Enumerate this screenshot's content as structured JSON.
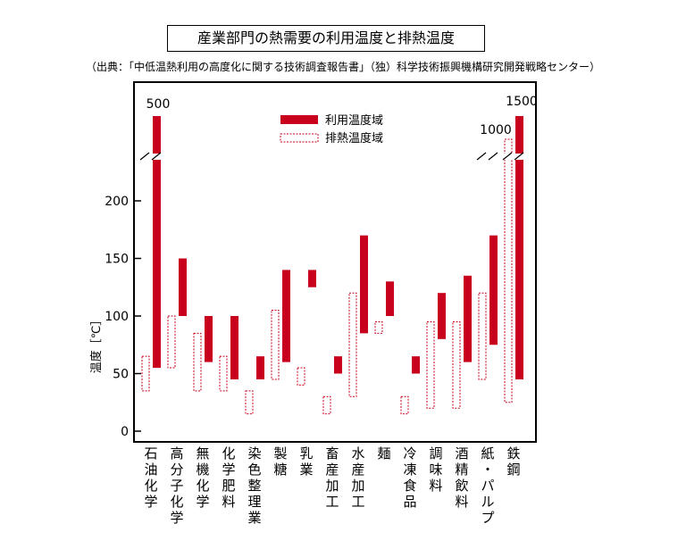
{
  "title": "産業部門の熱需要の利用温度と排熱温度",
  "source": "（出典：「中低温熱利用の高度化に関する技術調査報告書」（独）科学技術振興機構研究開発戦略センター）",
  "chart_data": {
    "type": "bar",
    "subtype": "floating-range",
    "ylabel": "温度［℃］",
    "ylim": [
      0,
      200
    ],
    "yticks": [
      0,
      50,
      100,
      150,
      200
    ],
    "axis_break": true,
    "legend": {
      "position": "top-center",
      "entries": [
        "利用温度域",
        "排熱温度域"
      ]
    },
    "colors": {
      "use": "#c8001e",
      "exhaust": "#c8001e"
    },
    "categories": [
      "石油化学",
      "高分子化学",
      "無機化学",
      "化学肥料",
      "染色整理業",
      "製糖",
      "乳業",
      "畜産加工",
      "水産加工",
      "麺",
      "冷凍食品",
      "調味料",
      "酒精飲料",
      "紙・パルプ",
      "鉄鋼"
    ],
    "series": [
      {
        "name": "利用温度域",
        "ranges": [
          [
            55,
            500
          ],
          [
            100,
            150
          ],
          [
            60,
            100
          ],
          [
            45,
            100
          ],
          [
            45,
            65
          ],
          [
            60,
            140
          ],
          [
            125,
            140
          ],
          [
            50,
            65
          ],
          [
            85,
            170
          ],
          [
            100,
            130
          ],
          [
            50,
            65
          ],
          [
            80,
            120
          ],
          [
            60,
            135
          ],
          [
            75,
            170
          ],
          [
            45,
            1500
          ]
        ]
      },
      {
        "name": "排熱温度域",
        "ranges": [
          [
            35,
            65
          ],
          [
            55,
            100
          ],
          [
            35,
            85
          ],
          [
            35,
            65
          ],
          [
            15,
            35
          ],
          [
            45,
            105
          ],
          [
            40,
            55
          ],
          [
            15,
            30
          ],
          [
            30,
            120
          ],
          [
            85,
            95
          ],
          [
            15,
            30
          ],
          [
            20,
            95
          ],
          [
            20,
            95
          ],
          [
            45,
            120
          ],
          [
            25,
            1000
          ]
        ]
      }
    ],
    "annotations": [
      "500",
      "1000",
      "1500"
    ]
  }
}
